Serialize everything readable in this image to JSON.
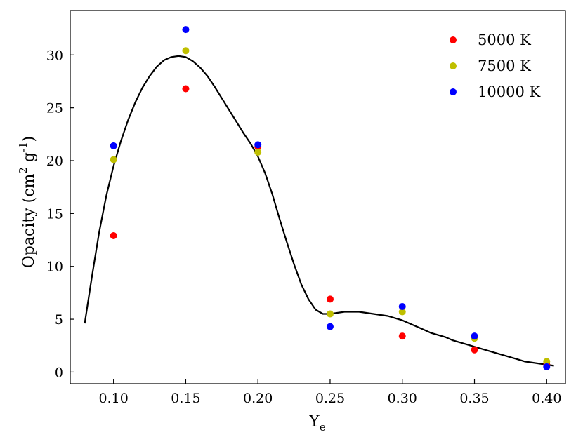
{
  "chart_data": {
    "type": "scatter",
    "xlabel": "Y",
    "xlabel_sub": "e",
    "ylabel": "Opacity (cm",
    "ylabel_sup1": "2",
    "ylabel_mid": " g",
    "ylabel_sup2": "-1",
    "ylabel_end": ")",
    "xlim": [
      0.07,
      0.413
    ],
    "ylim": [
      -1.1,
      34.2
    ],
    "xticks": [
      0.1,
      0.15,
      0.2,
      0.25,
      0.3,
      0.35,
      0.4
    ],
    "xtick_labels": [
      "0.10",
      "0.15",
      "0.20",
      "0.25",
      "0.30",
      "0.35",
      "0.40"
    ],
    "yticks": [
      0,
      5,
      10,
      15,
      20,
      25,
      30
    ],
    "ytick_labels": [
      "0",
      "5",
      "10",
      "15",
      "20",
      "25",
      "30"
    ],
    "grid": false,
    "legend_position": "top-right",
    "series": [
      {
        "name": "5000 K",
        "color": "#ff0000",
        "x": [
          0.1,
          0.15,
          0.2,
          0.25,
          0.3,
          0.35,
          0.4
        ],
        "y": [
          12.9,
          26.8,
          21.3,
          6.9,
          3.4,
          2.1,
          0.7
        ]
      },
      {
        "name": "7500 K",
        "color": "#bfbf00",
        "x": [
          0.1,
          0.15,
          0.2,
          0.25,
          0.3,
          0.35,
          0.4
        ],
        "y": [
          20.1,
          30.4,
          20.8,
          5.5,
          5.7,
          3.2,
          1.0
        ]
      },
      {
        "name": "10000 K",
        "color": "#0000ff",
        "x": [
          0.1,
          0.15,
          0.2,
          0.25,
          0.3,
          0.35,
          0.4
        ],
        "y": [
          21.4,
          32.4,
          21.5,
          4.3,
          6.2,
          3.4,
          0.5
        ]
      }
    ],
    "fit_curve": {
      "color": "#000000",
      "x": [
        0.08,
        0.085,
        0.09,
        0.095,
        0.1,
        0.105,
        0.11,
        0.115,
        0.12,
        0.125,
        0.13,
        0.135,
        0.14,
        0.145,
        0.15,
        0.155,
        0.16,
        0.165,
        0.17,
        0.175,
        0.18,
        0.185,
        0.19,
        0.195,
        0.2,
        0.205,
        0.21,
        0.215,
        0.22,
        0.225,
        0.23,
        0.235,
        0.24,
        0.245,
        0.25,
        0.255,
        0.26,
        0.265,
        0.27,
        0.275,
        0.28,
        0.285,
        0.29,
        0.295,
        0.3,
        0.305,
        0.31,
        0.315,
        0.32,
        0.325,
        0.33,
        0.335,
        0.34,
        0.345,
        0.35,
        0.355,
        0.36,
        0.365,
        0.37,
        0.375,
        0.38,
        0.385,
        0.39,
        0.395,
        0.4,
        0.405
      ],
      "y": [
        4.6,
        9.0,
        13.2,
        16.7,
        19.5,
        21.8,
        23.8,
        25.5,
        26.9,
        28.0,
        28.9,
        29.5,
        29.8,
        29.9,
        29.8,
        29.4,
        28.8,
        28.0,
        27.0,
        25.9,
        24.8,
        23.7,
        22.6,
        21.6,
        20.4,
        18.8,
        16.8,
        14.5,
        12.3,
        10.2,
        8.3,
        6.9,
        5.9,
        5.5,
        5.5,
        5.6,
        5.7,
        5.7,
        5.7,
        5.6,
        5.5,
        5.4,
        5.3,
        5.1,
        4.9,
        4.6,
        4.3,
        4.0,
        3.7,
        3.5,
        3.3,
        3.0,
        2.8,
        2.6,
        2.4,
        2.2,
        2.0,
        1.8,
        1.6,
        1.4,
        1.2,
        1.0,
        0.9,
        0.8,
        0.7,
        0.6
      ]
    }
  }
}
